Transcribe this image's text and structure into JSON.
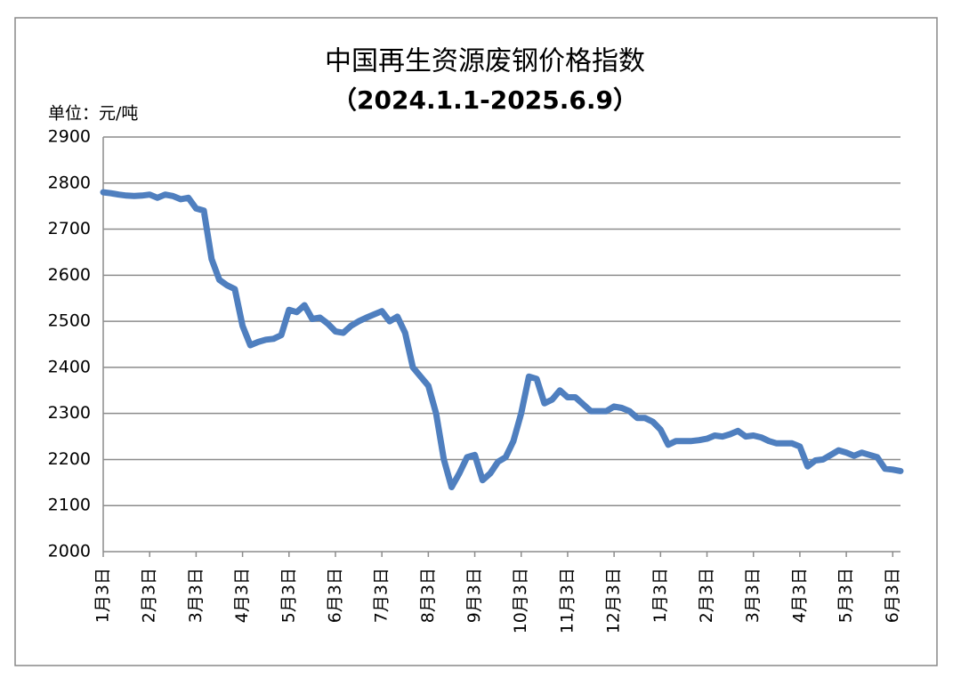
{
  "chart_data": {
    "type": "line",
    "title": "中国再生资源废钢价格指数",
    "subtitle": "（2024.1.1-2025.6.9）",
    "y_label": "单位：元/吨",
    "categories": [
      "1月3日",
      null,
      null,
      null,
      null,
      null,
      "2月3日",
      null,
      null,
      null,
      null,
      null,
      "3月3日",
      null,
      null,
      null,
      null,
      null,
      "4月3日",
      null,
      null,
      null,
      null,
      null,
      "5月3日",
      null,
      null,
      null,
      null,
      null,
      "6月3日",
      null,
      null,
      null,
      null,
      null,
      "7月3日",
      null,
      null,
      null,
      null,
      null,
      "8月3日",
      null,
      null,
      null,
      null,
      null,
      "9月3日",
      null,
      null,
      null,
      null,
      null,
      "10月3日",
      null,
      null,
      null,
      null,
      null,
      "11月3日",
      null,
      null,
      null,
      null,
      null,
      "12月3日",
      null,
      null,
      null,
      null,
      null,
      "1月3日",
      null,
      null,
      null,
      null,
      null,
      "2月3日",
      null,
      null,
      null,
      null,
      null,
      "3月3日",
      null,
      null,
      null,
      null,
      null,
      "4月3日",
      null,
      null,
      null,
      null,
      null,
      "5月3日",
      null,
      null,
      null,
      null,
      null,
      "6月3日",
      null
    ],
    "series": [
      {
        "name": "废钢价格指数",
        "color": "#4f7fbf",
        "values": [
          2780,
          2778,
          2775,
          2773,
          2772,
          2773,
          2775,
          2768,
          2775,
          2772,
          2765,
          2768,
          2745,
          2740,
          2635,
          2590,
          2578,
          2570,
          2490,
          2448,
          2455,
          2460,
          2462,
          2470,
          2525,
          2520,
          2535,
          2505,
          2508,
          2495,
          2478,
          2475,
          2490,
          2500,
          2508,
          2515,
          2522,
          2500,
          2510,
          2475,
          2400,
          2380,
          2360,
          2300,
          2200,
          2140,
          2170,
          2205,
          2210,
          2155,
          2170,
          2195,
          2205,
          2240,
          2300,
          2380,
          2375,
          2322,
          2330,
          2350,
          2335,
          2335,
          2320,
          2305,
          2305,
          2305,
          2315,
          2312,
          2305,
          2290,
          2290,
          2282,
          2265,
          2232,
          2240,
          2240,
          2240,
          2242,
          2245,
          2252,
          2250,
          2255,
          2262,
          2250,
          2252,
          2248,
          2240,
          2235,
          2235,
          2235,
          2228,
          2185,
          2198,
          2200,
          2210,
          2220,
          2215,
          2208,
          2215,
          2210,
          2205,
          2180,
          2178,
          2175
        ]
      }
    ],
    "ylim": [
      2000,
      2900
    ],
    "yticks": [
      2000,
      2100,
      2200,
      2300,
      2400,
      2500,
      2600,
      2700,
      2800,
      2900
    ],
    "grid": true
  }
}
